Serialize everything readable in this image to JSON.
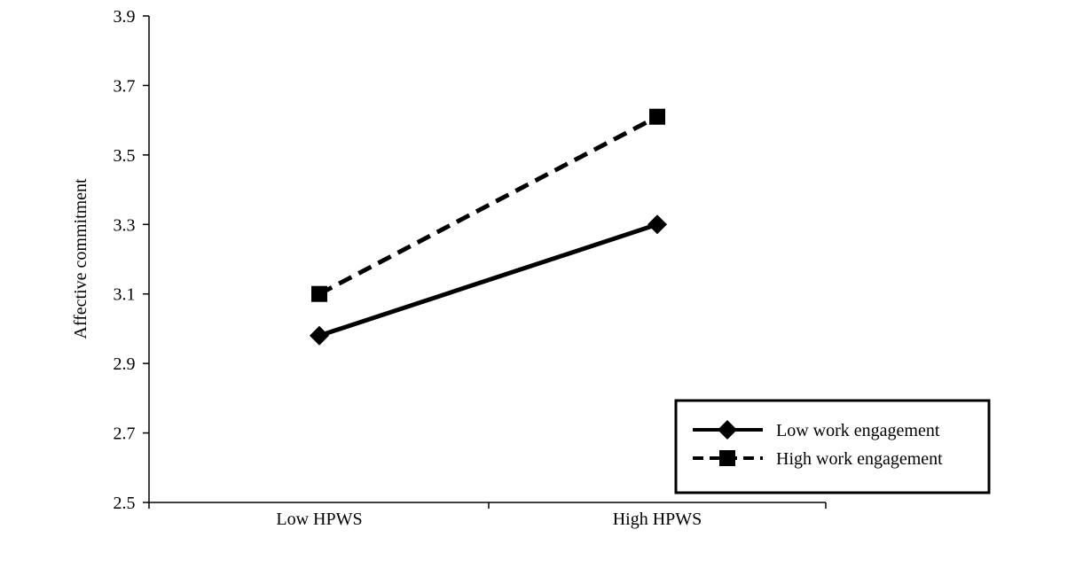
{
  "chart_data": {
    "type": "line",
    "title": "",
    "xlabel": "",
    "ylabel": "Affective commitment",
    "categories": [
      "Low HPWS",
      "High HPWS"
    ],
    "ylim": [
      2.5,
      3.9
    ],
    "yticks": [
      "2.5",
      "2.7",
      "2.9",
      "3.1",
      "3.3",
      "3.5",
      "3.7",
      "3.9"
    ],
    "grid": false,
    "legend_position": "bottom-right",
    "series": [
      {
        "name": "Low work engagement",
        "values": [
          2.98,
          3.3
        ],
        "marker": "diamond",
        "line_style": "solid",
        "color": "#000000"
      },
      {
        "name": "High work engagement",
        "values": [
          3.1,
          3.61
        ],
        "marker": "square",
        "line_style": "dashed",
        "color": "#000000"
      }
    ]
  }
}
